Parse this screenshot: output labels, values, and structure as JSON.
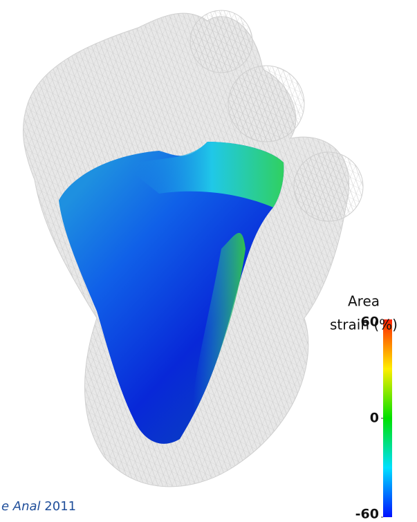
{
  "chart_data": {
    "type": "colorbar",
    "title_lines": [
      "Area",
      "strain (%)"
    ],
    "lim": [
      -60,
      60
    ],
    "ticks": [
      60,
      0,
      -60
    ],
    "colormap": [
      "#0010ff",
      "#00e0ff",
      "#00e000",
      "#ffee00",
      "#ff2000"
    ]
  },
  "caption": {
    "italic": "e Anal",
    "year": "2011"
  }
}
